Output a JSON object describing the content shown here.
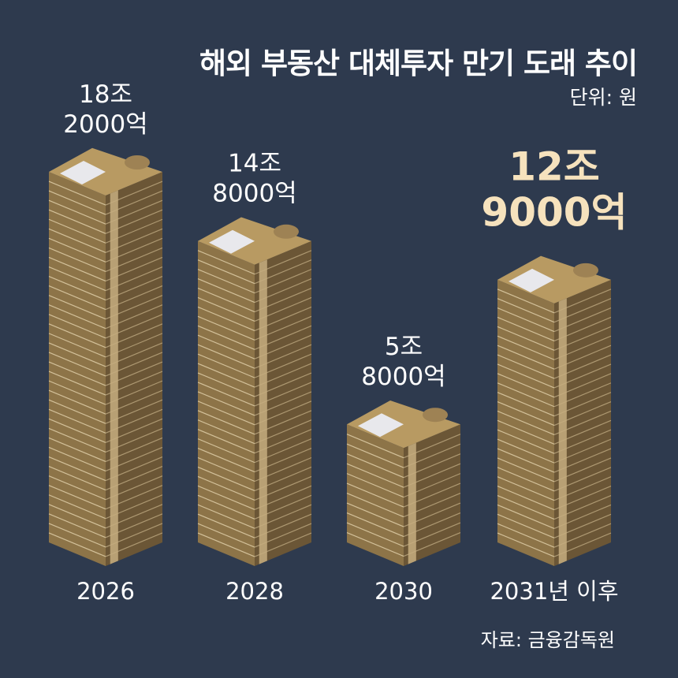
{
  "title": "해외 부동산 대체투자 만기 도래 추이",
  "unit_label": "단위: 원",
  "source": "자료: 금융감독원",
  "colors": {
    "background": "#2e3a4e",
    "stack_front": "#8d7448",
    "stack_side": "#6b5636",
    "stack_top": "#b89a62",
    "band": "#c6ad7f",
    "highlight_text": "#f6e2bd"
  },
  "chart_data": {
    "type": "bar",
    "title": "해외 부동산 대체투자 만기 도래 추이",
    "unit": "원",
    "categories": [
      "2026",
      "2028",
      "2030",
      "2031년 이후"
    ],
    "values": [
      18.2,
      14.8,
      5.8,
      12.9
    ],
    "value_labels": [
      [
        "18조",
        "2000억"
      ],
      [
        "14조",
        "8000억"
      ],
      [
        "5조",
        "8000억"
      ],
      [
        "12조",
        "9000억"
      ]
    ],
    "highlight_index": 3,
    "ylim": [
      0,
      18.2
    ],
    "grid": false,
    "legend": "none"
  }
}
